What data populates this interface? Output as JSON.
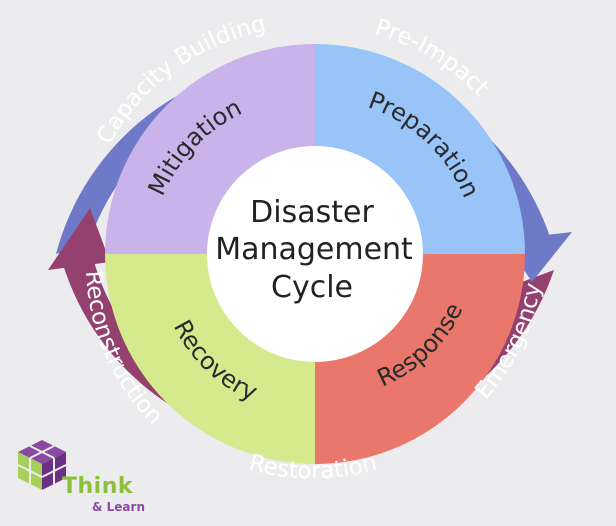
{
  "center": {
    "line1": "Disaster",
    "line2": "Management",
    "line3": "Cycle"
  },
  "phases": {
    "mitigation": "Mitigation",
    "preparation": "Preparation",
    "response": "Response",
    "recovery": "Recovery"
  },
  "ring": {
    "capacity_building": "Capacity Building",
    "pre_impact": "Pre-Impact",
    "emergency": "Emergency",
    "restoration": "Restoration",
    "reconstruction": "Reconstruction"
  },
  "logo": {
    "name": "Think",
    "tagline": "& Learn"
  },
  "colors": {
    "mitigation": "#c9b3ea",
    "preparation": "#98c4f7",
    "response": "#e9776c",
    "recovery": "#d4ea8c",
    "outer_blue_arrow": "#6e79c7",
    "outer_purple_arrow": "#95416f",
    "center_circle": "#ffffff",
    "background": "#ececee"
  }
}
